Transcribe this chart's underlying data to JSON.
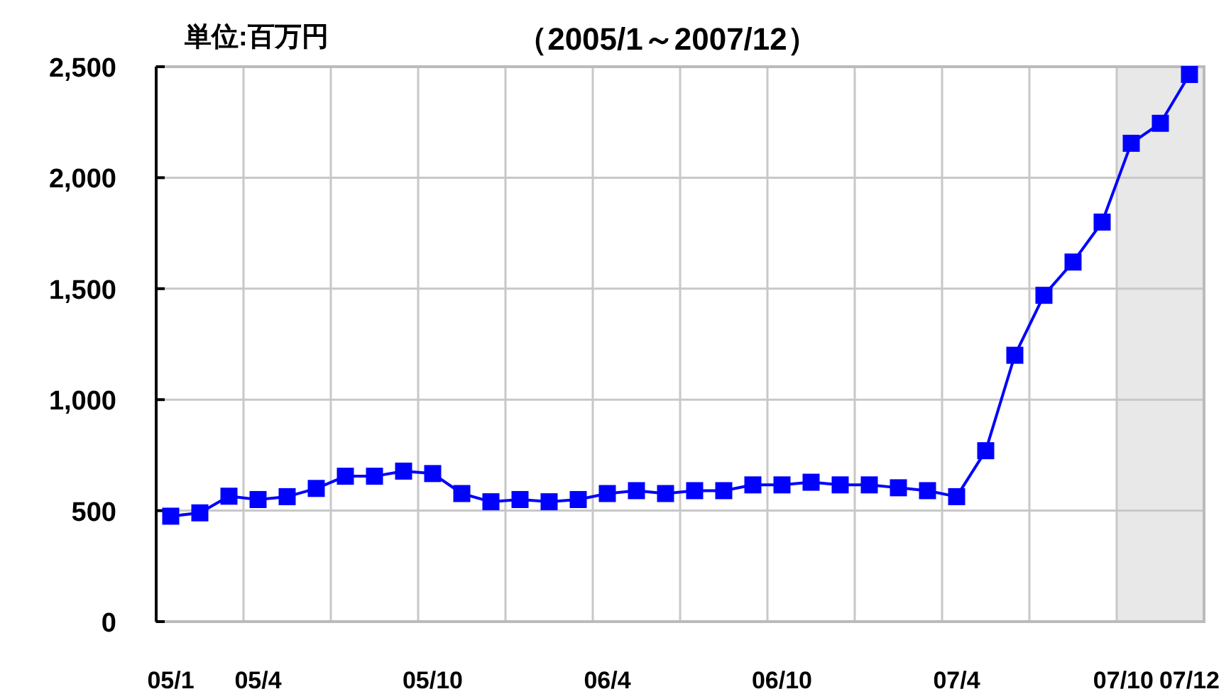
{
  "chart_data": {
    "type": "line",
    "title": "（2005/1～2007/12）",
    "annotations": [
      "単位:百万円"
    ],
    "categories": [
      "05/1",
      null,
      null,
      "05/4",
      null,
      null,
      null,
      null,
      null,
      "05/10",
      null,
      null,
      null,
      null,
      null,
      "06/4",
      null,
      null,
      null,
      null,
      null,
      "06/10",
      null,
      null,
      null,
      null,
      null,
      "07/4",
      null,
      null,
      null,
      null,
      null,
      "07/10",
      null,
      "07/12"
    ],
    "values": [
      475,
      490,
      565,
      550,
      563,
      600,
      655,
      655,
      678,
      667,
      577,
      540,
      550,
      540,
      550,
      577,
      590,
      577,
      590,
      590,
      616,
      616,
      628,
      616,
      616,
      603,
      590,
      563,
      770,
      1200,
      1470,
      1620,
      1800,
      2155,
      2245,
      2465
    ],
    "color": "#0000ff",
    "marker": "square",
    "line_style": "solid",
    "grid": true,
    "ylim": [
      0,
      2500
    ],
    "yticks": [
      0,
      {
        "value": 500,
        "label": "500"
      },
      {
        "value": 1000,
        "label": "1,000"
      },
      {
        "value": 1500,
        "label": "1,500"
      },
      {
        "value": 2000,
        "label": "2,000"
      },
      {
        "value": 2500,
        "label": "2,500"
      }
    ],
    "bands": [
      {
        "axis": "x",
        "from": "07/10",
        "to": "07/12",
        "color": "#e8e8e8"
      }
    ]
  }
}
